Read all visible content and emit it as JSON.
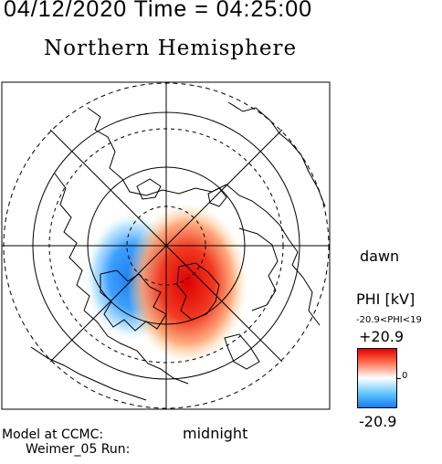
{
  "header": {
    "datetime": "04/12/2020 Time = 04:25:00",
    "hemisphere": "Northern Hemisphere"
  },
  "map": {
    "orientation_labels": {
      "right": "dawn",
      "bottom": "midnight"
    },
    "colors": {
      "positive": "#e30000",
      "negative": "#1a7aee",
      "neutral": "#ffffff"
    }
  },
  "colorbar": {
    "title": "PHI [kV]",
    "range_text": "-20.9<PHI<19",
    "max_label": "+20.9",
    "zero_label": "0",
    "min_label": "-20.9"
  },
  "footer": {
    "model_line1": "Model at CCMC:",
    "model_line2": "Weimer_05 Run:"
  }
}
